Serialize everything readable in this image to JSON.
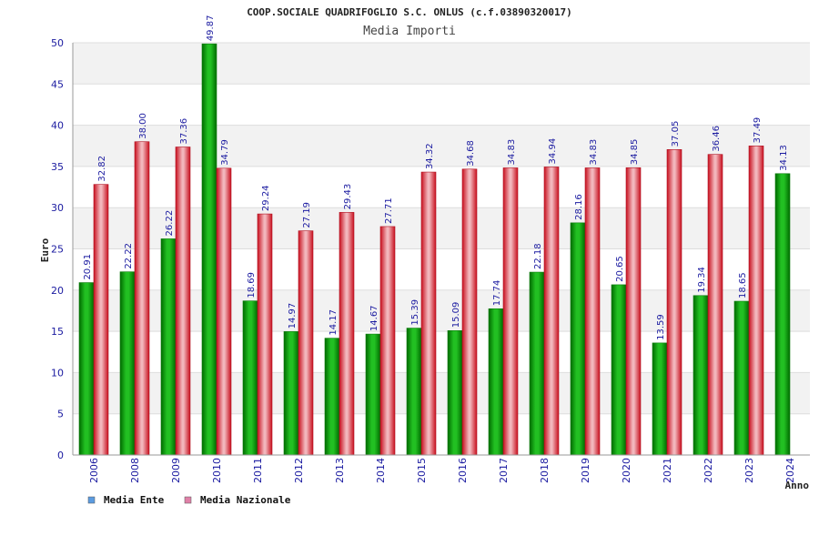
{
  "chart_data": {
    "type": "bar",
    "title": "COOP.SOCIALE QUADRIFOGLIO S.C. ONLUS (c.f.03890320017)",
    "subtitle": "Media Importi",
    "xlabel": "Anno",
    "ylabel": "Euro",
    "ylim": [
      0,
      50
    ],
    "yticks": [
      0,
      5,
      10,
      15,
      20,
      25,
      30,
      35,
      40,
      45,
      50
    ],
    "grid": "horizontal bands",
    "legend_position": "bottom-left",
    "categories": [
      "2006",
      "2008",
      "2009",
      "2010",
      "2011",
      "2012",
      "2013",
      "2014",
      "2015",
      "2016",
      "2017",
      "2018",
      "2019",
      "2020",
      "2021",
      "2022",
      "2023",
      "2024"
    ],
    "series": [
      {
        "name": "Media Ente",
        "color": "#1aa31a",
        "values": [
          20.91,
          22.22,
          26.22,
          49.87,
          18.69,
          14.97,
          14.17,
          14.67,
          15.39,
          15.09,
          17.74,
          22.18,
          28.16,
          20.65,
          13.59,
          19.34,
          18.65,
          34.13
        ],
        "labels": [
          "20.91",
          "22.22",
          "26.22",
          "49.87",
          "18.69",
          "14.97",
          "14.17",
          "14.67",
          "15.39",
          "15.09",
          "17.74",
          "22.18",
          "28.16",
          "20.65",
          "13.59",
          "19.34",
          "18.65",
          "34.13"
        ]
      },
      {
        "name": "Media Nazionale",
        "color": "#e0303c",
        "values": [
          32.82,
          38.0,
          37.36,
          34.79,
          29.24,
          27.19,
          29.43,
          27.71,
          34.32,
          34.68,
          34.83,
          34.94,
          34.83,
          34.85,
          37.05,
          36.46,
          37.49,
          null
        ],
        "labels": [
          "32.82",
          "38.00",
          "37.36",
          "34.79",
          "29.24",
          "27.19",
          "29.43",
          "27.71",
          "34.32",
          "34.68",
          "34.83",
          "34.94",
          "34.83",
          "34.85",
          "37.05",
          "36.46",
          "37.49",
          null
        ]
      }
    ],
    "legend": [
      {
        "label": "Media Ente",
        "color": "#5b9be0"
      },
      {
        "label": "Media Nazionale",
        "color": "#e080a8"
      }
    ]
  }
}
